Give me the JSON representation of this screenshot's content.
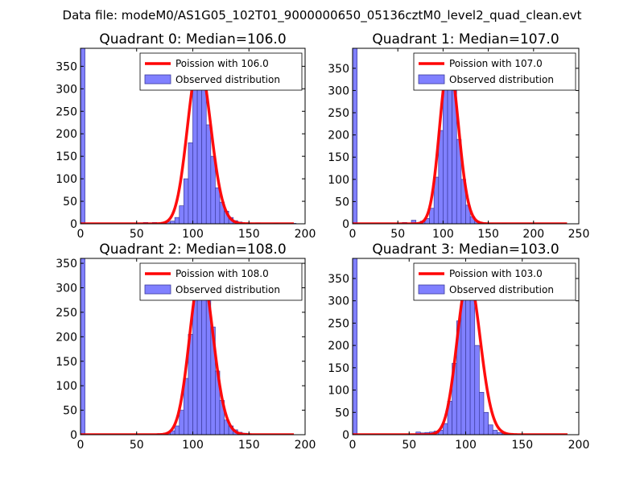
{
  "figure_title": "Data file: modeM0/AS1G05_102T01_9000000650_05136cztM0_level2_quad_clean.evt",
  "colors": {
    "poisson": "#ff0000",
    "hist_fill": "#8080ff",
    "hist_edge": "#3b3b9c",
    "axis": "#000000"
  },
  "chart_data": [
    {
      "type": "bar",
      "title": "Quadrant 0: Median=106.0",
      "median": 106.0,
      "xlim": [
        0,
        200
      ],
      "ylim": [
        0,
        390
      ],
      "xticks": [
        0,
        50,
        100,
        150,
        200
      ],
      "yticks": [
        0,
        50,
        100,
        150,
        200,
        250,
        300,
        350
      ],
      "legend": {
        "line_label": "Poission with 106.0",
        "bar_label": "Observed distribution",
        "position": "top-right"
      },
      "bin_width": 4,
      "bins": [
        [
          0,
          390
        ],
        [
          56,
          3
        ],
        [
          64,
          3
        ],
        [
          72,
          3
        ],
        [
          76,
          4
        ],
        [
          80,
          6
        ],
        [
          84,
          14
        ],
        [
          88,
          40
        ],
        [
          92,
          100
        ],
        [
          96,
          180
        ],
        [
          100,
          300
        ],
        [
          104,
          360
        ],
        [
          108,
          310
        ],
        [
          112,
          220
        ],
        [
          116,
          150
        ],
        [
          120,
          80
        ],
        [
          124,
          48
        ],
        [
          128,
          28
        ],
        [
          132,
          14
        ],
        [
          136,
          7
        ],
        [
          140,
          4
        ],
        [
          148,
          2
        ],
        [
          156,
          2
        ],
        [
          172,
          1
        ],
        [
          188,
          1
        ]
      ]
    },
    {
      "type": "bar",
      "title": "Quadrant 1: Median=107.0",
      "median": 107.0,
      "xlim": [
        0,
        250
      ],
      "ylim": [
        0,
        395
      ],
      "xticks": [
        0,
        50,
        100,
        150,
        200,
        250
      ],
      "yticks": [
        0,
        50,
        100,
        150,
        200,
        250,
        300,
        350
      ],
      "legend": {
        "line_label": "Poission with 107.0",
        "bar_label": "Observed distribution",
        "position": "top-right"
      },
      "bin_width": 5,
      "bins": [
        [
          0,
          395
        ],
        [
          55,
          3
        ],
        [
          65,
          8
        ],
        [
          75,
          6
        ],
        [
          80,
          12
        ],
        [
          85,
          35
        ],
        [
          90,
          105
        ],
        [
          95,
          210
        ],
        [
          100,
          320
        ],
        [
          105,
          365
        ],
        [
          110,
          300
        ],
        [
          115,
          190
        ],
        [
          120,
          100
        ],
        [
          125,
          42
        ],
        [
          130,
          16
        ],
        [
          135,
          6
        ],
        [
          140,
          3
        ],
        [
          150,
          1
        ],
        [
          165,
          1
        ],
        [
          195,
          1
        ]
      ]
    },
    {
      "type": "bar",
      "title": "Quadrant 2: Median=108.0",
      "median": 108.0,
      "xlim": [
        0,
        200
      ],
      "ylim": [
        0,
        360
      ],
      "xticks": [
        0,
        50,
        100,
        150,
        200
      ],
      "yticks": [
        0,
        50,
        100,
        150,
        200,
        250,
        300,
        350
      ],
      "legend": {
        "line_label": "Poission with 108.0",
        "bar_label": "Observed distribution",
        "position": "top-right"
      },
      "bin_width": 4,
      "bins": [
        [
          0,
          360
        ],
        [
          68,
          2
        ],
        [
          76,
          4
        ],
        [
          80,
          8
        ],
        [
          84,
          18
        ],
        [
          88,
          50
        ],
        [
          92,
          115
        ],
        [
          96,
          205
        ],
        [
          100,
          285
        ],
        [
          104,
          330
        ],
        [
          108,
          335
        ],
        [
          112,
          300
        ],
        [
          116,
          220
        ],
        [
          120,
          130
        ],
        [
          124,
          70
        ],
        [
          128,
          30
        ],
        [
          132,
          18
        ],
        [
          136,
          10
        ],
        [
          140,
          5
        ],
        [
          144,
          3
        ],
        [
          148,
          2
        ]
      ]
    },
    {
      "type": "bar",
      "title": "Quadrant 3: Median=103.0",
      "median": 103.0,
      "xlim": [
        0,
        200
      ],
      "ylim": [
        0,
        395
      ],
      "xticks": [
        0,
        50,
        100,
        150,
        200
      ],
      "yticks": [
        0,
        50,
        100,
        150,
        200,
        250,
        300,
        350
      ],
      "legend": {
        "line_label": "Poission with 103.0",
        "bar_label": "Observed distribution",
        "position": "top-right"
      },
      "bin_width": 4,
      "bins": [
        [
          0,
          395
        ],
        [
          56,
          6
        ],
        [
          60,
          4
        ],
        [
          64,
          5
        ],
        [
          68,
          6
        ],
        [
          72,
          8
        ],
        [
          76,
          10
        ],
        [
          80,
          25
        ],
        [
          84,
          75
        ],
        [
          88,
          160
        ],
        [
          92,
          255
        ],
        [
          96,
          320
        ],
        [
          100,
          355
        ],
        [
          104,
          320
        ],
        [
          108,
          200
        ],
        [
          112,
          95
        ],
        [
          116,
          50
        ],
        [
          120,
          22
        ],
        [
          124,
          10
        ],
        [
          128,
          5
        ],
        [
          132,
          2
        ],
        [
          136,
          1
        ]
      ]
    }
  ]
}
